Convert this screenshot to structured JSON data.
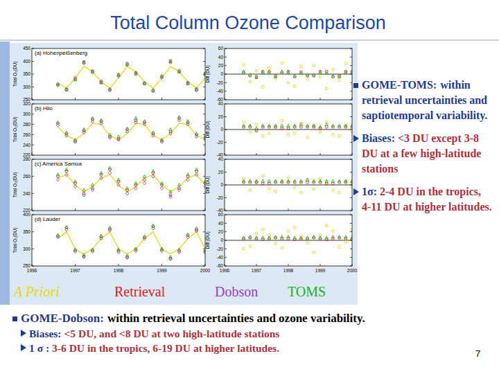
{
  "title": "Total Column Ozone Comparison",
  "chart_data": [
    {
      "type": "scatter",
      "title": "(a) Hohenpeißenberg",
      "y_label": "Total O₃(DU)",
      "x": [
        1996.6,
        1996.8,
        1997.0,
        1997.2,
        1997.4,
        1997.6,
        1997.8,
        1998.0,
        1998.2,
        1998.4,
        1998.6,
        1998.8,
        1999.0,
        1999.2,
        1999.4,
        1999.6,
        1999.8,
        2000.0
      ],
      "xlim": [
        1996,
        2000
      ],
      "xticks": [
        1996,
        1997,
        1998,
        1999,
        2000
      ],
      "ylim": [
        250,
        450
      ],
      "yticks": [
        250,
        300,
        350,
        400,
        450
      ],
      "tick_labels": "y",
      "series": [
        {
          "name": "A Priori",
          "color": "#e6d800",
          "type": "line",
          "values": [
            315,
            295,
            335,
            380,
            360,
            320,
            295,
            335,
            380,
            360,
            320,
            295,
            335,
            380,
            360,
            320,
            295,
            335
          ]
        },
        {
          "name": "Retrieval",
          "color": "#e02020",
          "marker": "circle",
          "values": [
            310,
            288,
            330,
            398,
            362,
            318,
            290,
            348,
            386,
            355,
            312,
            284,
            342,
            402,
            358,
            314,
            292,
            352
          ]
        },
        {
          "name": "Dobson",
          "color": "#9040c0",
          "marker": "diamond",
          "values": [
            306,
            292,
            336,
            392,
            356,
            322,
            286,
            342,
            392,
            350,
            316,
            288,
            336,
            396,
            364,
            318,
            286,
            346
          ]
        },
        {
          "name": "TOMS",
          "color": "#20b020",
          "marker": "triangle",
          "values": [
            312,
            290,
            328,
            396,
            360,
            316,
            292,
            346,
            388,
            352,
            314,
            286,
            340,
            398,
            360,
            312,
            290,
            350
          ]
        }
      ]
    },
    {
      "type": "scatter",
      "y_label": "Diff (DU)",
      "x": [
        1996.6,
        1996.8,
        1997.0,
        1997.2,
        1997.4,
        1997.6,
        1997.8,
        1998.0,
        1998.2,
        1998.4,
        1998.6,
        1998.8,
        1999.0,
        1999.2,
        1999.4,
        1999.6,
        1999.8,
        2000.0
      ],
      "xlim": [
        1996,
        2000
      ],
      "xticks": [
        1996,
        1997,
        1998,
        1999,
        2000
      ],
      "ylim": [
        -60,
        60
      ],
      "yticks": [
        -60,
        -40,
        -20,
        0,
        20,
        40,
        60
      ],
      "tick_labels": "y",
      "series": [
        {
          "color": "#e6d800",
          "marker": "circle",
          "values": [
            22,
            -18,
            8,
            -30,
            14,
            -10,
            26,
            -20,
            -28,
            18,
            -12,
            20,
            -6,
            -34,
            10,
            -14,
            24,
            -22
          ]
        },
        {
          "color": "#e02020",
          "marker": "circle",
          "values": [
            4,
            -4,
            -6,
            6,
            6,
            -4,
            4,
            6,
            -6,
            5,
            -4,
            -4,
            6,
            6,
            -6,
            -4,
            6,
            6
          ]
        },
        {
          "color": "#20b020",
          "marker": "triangle",
          "values": [
            6,
            -2,
            -8,
            4,
            4,
            -6,
            6,
            4,
            -4,
            2,
            -2,
            -2,
            4,
            2,
            -4,
            -6,
            4,
            4
          ]
        }
      ]
    },
    {
      "type": "scatter",
      "title": "(b) Hilo",
      "y_label": "Total O₃(DU)",
      "x": [
        1996.6,
        1996.8,
        1997.0,
        1997.2,
        1997.4,
        1997.6,
        1997.8,
        1998.0,
        1998.2,
        1998.4,
        1998.6,
        1998.8,
        1999.0,
        1999.2,
        1999.4,
        1999.6,
        1999.8,
        2000.0
      ],
      "xlim": [
        1996,
        2000
      ],
      "xticks": [
        1996,
        1997,
        1998,
        1999,
        2000
      ],
      "ylim": [
        220,
        320
      ],
      "yticks": [
        220,
        240,
        260,
        280,
        300,
        320
      ],
      "tick_labels": "y",
      "series": [
        {
          "name": "A Priori",
          "color": "#e6d800",
          "type": "line",
          "values": [
            275,
            258,
            250,
            262,
            282,
            280,
            258,
            250,
            262,
            282,
            280,
            258,
            250,
            262,
            282,
            280,
            258,
            250
          ]
        },
        {
          "name": "Retrieval",
          "color": "#e02020",
          "marker": "circle",
          "values": [
            282,
            262,
            246,
            268,
            290,
            286,
            256,
            252,
            270,
            288,
            284,
            262,
            248,
            266,
            292,
            284,
            260,
            254
          ]
        },
        {
          "name": "Dobson",
          "color": "#9040c0",
          "marker": "diamond",
          "values": [
            278,
            258,
            248,
            264,
            286,
            282,
            254,
            250,
            266,
            284,
            280,
            258,
            246,
            262,
            288,
            280,
            256,
            250
          ]
        },
        {
          "name": "TOMS",
          "color": "#20b020",
          "marker": "triangle",
          "values": [
            284,
            264,
            250,
            270,
            292,
            288,
            260,
            256,
            272,
            292,
            286,
            264,
            250,
            270,
            294,
            286,
            262,
            256
          ]
        }
      ]
    },
    {
      "type": "scatter",
      "y_label": "Diff (DU)",
      "x": [
        1996.6,
        1996.8,
        1997.0,
        1997.2,
        1997.4,
        1997.6,
        1997.8,
        1998.0,
        1998.2,
        1998.4,
        1998.6,
        1998.8,
        1999.0,
        1999.2,
        1999.4,
        1999.6,
        1999.8,
        2000.0
      ],
      "xlim": [
        1996,
        2000
      ],
      "xticks": [
        1996,
        1997,
        1998,
        1999,
        2000
      ],
      "ylim": [
        -40,
        40
      ],
      "yticks": [
        -40,
        -20,
        0,
        20,
        40
      ],
      "tick_labels": "y",
      "series": [
        {
          "color": "#e6d800",
          "marker": "circle",
          "values": [
            12,
            -4,
            8,
            -10,
            -6,
            4,
            14,
            -8,
            -6,
            10,
            -12,
            6,
            -4,
            12,
            -8,
            -10,
            6,
            -2
          ]
        },
        {
          "color": "#e02020",
          "marker": "circle",
          "values": [
            4,
            4,
            -2,
            4,
            4,
            4,
            2,
            2,
            4,
            4,
            4,
            4,
            2,
            4,
            4,
            4,
            4,
            4
          ]
        },
        {
          "color": "#20b020",
          "marker": "triangle",
          "values": [
            6,
            6,
            2,
            6,
            6,
            6,
            6,
            6,
            6,
            8,
            6,
            6,
            4,
            8,
            6,
            6,
            6,
            6
          ]
        }
      ]
    },
    {
      "type": "scatter",
      "title": "(c) America Samoa",
      "y_label": "Total O₃(DU)",
      "x": [
        1996.6,
        1996.8,
        1997.0,
        1997.2,
        1997.4,
        1997.6,
        1997.8,
        1998.0,
        1998.2,
        1998.4,
        1998.6,
        1998.8,
        1999.0,
        1999.2,
        1999.4,
        1999.6,
        1999.8,
        2000.0
      ],
      "xlim": [
        1996,
        2000
      ],
      "xticks": [
        1996,
        1997,
        1998,
        1999,
        2000
      ],
      "ylim": [
        220,
        280
      ],
      "yticks": [
        220,
        240,
        260,
        280
      ],
      "tick_labels": "y",
      "series": [
        {
          "name": "A Priori",
          "color": "#e6d800",
          "type": "line",
          "values": [
            258,
            262,
            250,
            242,
            248,
            258,
            262,
            250,
            242,
            248,
            258,
            262,
            250,
            242,
            248,
            258,
            262,
            250
          ]
        },
        {
          "name": "Retrieval",
          "color": "#e02020",
          "marker": "circle",
          "values": [
            260,
            266,
            252,
            240,
            246,
            262,
            268,
            254,
            244,
            250,
            256,
            264,
            250,
            238,
            246,
            260,
            266,
            252
          ]
        },
        {
          "name": "Dobson",
          "color": "#9040c0",
          "marker": "diamond",
          "values": [
            256,
            262,
            248,
            238,
            244,
            258,
            264,
            250,
            240,
            246,
            252,
            260,
            246,
            236,
            244,
            256,
            262,
            248
          ]
        },
        {
          "name": "TOMS",
          "color": "#20b020",
          "marker": "triangle",
          "values": [
            262,
            268,
            254,
            244,
            250,
            264,
            270,
            256,
            246,
            252,
            260,
            266,
            252,
            242,
            250,
            262,
            268,
            254
          ]
        }
      ]
    },
    {
      "type": "scatter",
      "y_label": "Diff (DU)",
      "x": [
        1996.6,
        1996.8,
        1997.0,
        1997.2,
        1997.4,
        1997.6,
        1997.8,
        1998.0,
        1998.2,
        1998.4,
        1998.6,
        1998.8,
        1999.0,
        1999.2,
        1999.4,
        1999.6,
        1999.8,
        2000.0
      ],
      "xlim": [
        1996,
        2000
      ],
      "xticks": [
        1996,
        1997,
        1998,
        1999,
        2000
      ],
      "ylim": [
        -40,
        40
      ],
      "yticks": [
        -40,
        -20,
        0,
        20,
        40
      ],
      "tick_labels": "y",
      "series": [
        {
          "color": "#e6d800",
          "marker": "circle",
          "values": [
            10,
            -8,
            4,
            14,
            -6,
            -10,
            6,
            12,
            -4,
            -12,
            8,
            -6,
            10,
            4,
            -8,
            -12,
            6,
            -4
          ]
        },
        {
          "color": "#e02020",
          "marker": "circle",
          "values": [
            4,
            4,
            4,
            2,
            2,
            4,
            4,
            4,
            4,
            4,
            4,
            4,
            4,
            2,
            2,
            4,
            4,
            4
          ]
        },
        {
          "color": "#20b020",
          "marker": "triangle",
          "values": [
            6,
            6,
            6,
            6,
            6,
            6,
            6,
            6,
            6,
            6,
            8,
            6,
            6,
            6,
            6,
            6,
            6,
            6
          ]
        }
      ]
    },
    {
      "type": "scatter",
      "title": "(d) Lauder",
      "y_label": "Total O₃(DU)",
      "x": [
        1996.6,
        1996.8,
        1997.0,
        1997.2,
        1997.4,
        1997.6,
        1997.8,
        1998.0,
        1998.2,
        1998.4,
        1998.6,
        1998.8,
        1999.0,
        1999.2,
        1999.4,
        1999.6,
        1999.8,
        2000.0
      ],
      "xlim": [
        1996,
        2000
      ],
      "xticks": [
        1996,
        1997,
        1998,
        1999,
        2000
      ],
      "ylim": [
        250,
        400
      ],
      "yticks": [
        250,
        300,
        350,
        400
      ],
      "tick_labels": true,
      "series": [
        {
          "name": "A Priori",
          "color": "#e6d800",
          "type": "line",
          "values": [
            330,
            350,
            300,
            285,
            300,
            330,
            350,
            300,
            285,
            300,
            330,
            350,
            300,
            285,
            300,
            330,
            350,
            300
          ]
        },
        {
          "name": "Retrieval",
          "color": "#e02020",
          "marker": "circle",
          "values": [
            338,
            362,
            296,
            278,
            296,
            336,
            358,
            294,
            276,
            298,
            334,
            366,
            298,
            272,
            294,
            340,
            356,
            292
          ]
        },
        {
          "name": "Dobson",
          "color": "#9040c0",
          "marker": "diamond",
          "values": [
            334,
            356,
            292,
            276,
            292,
            330,
            354,
            290,
            274,
            294,
            330,
            360,
            294,
            270,
            290,
            334,
            352,
            290
          ]
        },
        {
          "name": "TOMS",
          "color": "#20b020",
          "marker": "triangle",
          "values": [
            340,
            364,
            298,
            282,
            298,
            338,
            362,
            298,
            280,
            300,
            336,
            368,
            300,
            276,
            298,
            342,
            360,
            296
          ]
        }
      ]
    },
    {
      "type": "scatter",
      "y_label": "Diff (DU)",
      "x": [
        1996.6,
        1996.8,
        1997.0,
        1997.2,
        1997.4,
        1997.6,
        1997.8,
        1998.0,
        1998.2,
        1998.4,
        1998.6,
        1998.8,
        1999.0,
        1999.2,
        1999.4,
        1999.6,
        1999.8,
        2000.0
      ],
      "xlim": [
        1996,
        2000
      ],
      "xticks": [
        1996,
        1997,
        1998,
        1999,
        2000
      ],
      "ylim": [
        -60,
        60
      ],
      "yticks": [
        -60,
        -40,
        -20,
        0,
        20,
        40,
        60
      ],
      "tick_labels": true,
      "series": [
        {
          "color": "#e6d800",
          "marker": "circle",
          "values": [
            -20,
            -14,
            16,
            26,
            12,
            -8,
            -18,
            22,
            30,
            10,
            -6,
            -28,
            12,
            34,
            22,
            -16,
            -4,
            24
          ]
        },
        {
          "color": "#e02020",
          "marker": "circle",
          "values": [
            4,
            6,
            4,
            2,
            4,
            6,
            4,
            4,
            2,
            4,
            4,
            6,
            4,
            2,
            4,
            6,
            4,
            2
          ]
        },
        {
          "color": "#20b020",
          "marker": "triangle",
          "values": [
            6,
            8,
            6,
            6,
            6,
            8,
            8,
            8,
            6,
            6,
            6,
            8,
            6,
            6,
            8,
            8,
            8,
            6
          ]
        }
      ]
    }
  ],
  "right_notes": {
    "heading": {
      "label": "GOME-TOMS:",
      "text": "within retrieval uncertainties and saptiotemporal variability."
    },
    "items": [
      {
        "label": "Biases:",
        "text": "<3 DU except 3-8 DU at a few high-latitude stations"
      },
      {
        "label": "1σ:",
        "text": "2-4 DU in the tropics, 4-11 DU at higher latitudes."
      }
    ]
  },
  "bottom_notes": {
    "heading": {
      "label": "GOME-Dobson:",
      "text": "within retrieval uncertainties and ozone variability."
    },
    "items": [
      {
        "label": "Biases:",
        "text": "<5 DU, and <8 DU at two high-latitude stations"
      },
      {
        "label": "1 σ :",
        "text": "3-6 DU in the tropics, 6-19 DU at higher latitudes."
      }
    ]
  },
  "page_number": 7
}
